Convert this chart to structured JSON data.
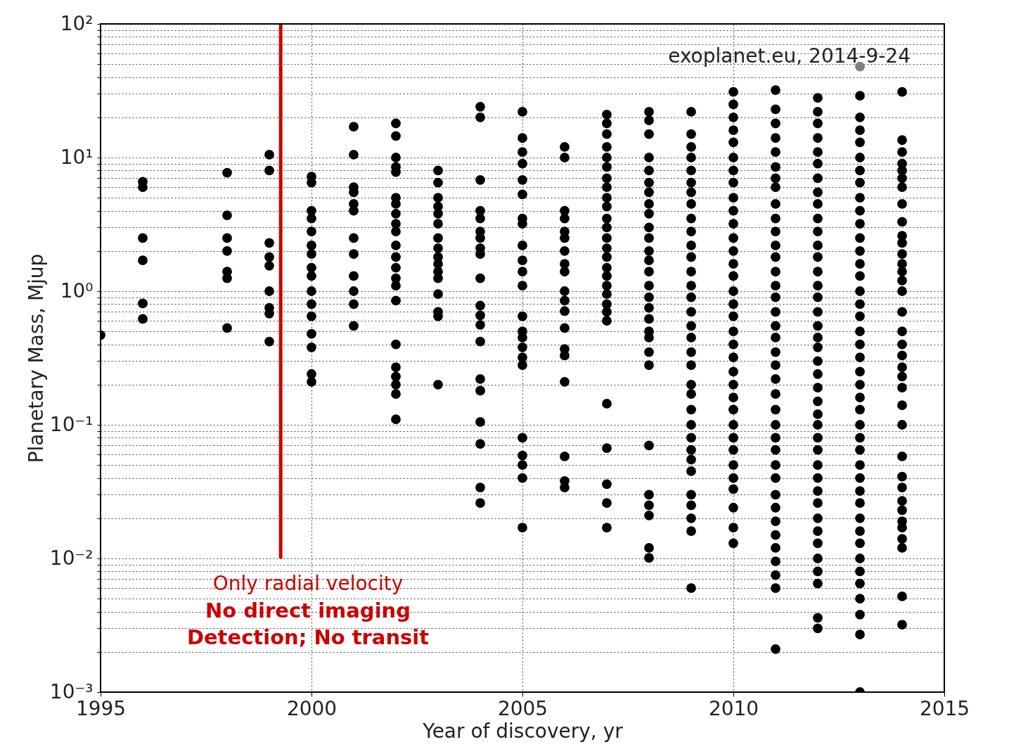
{
  "chart_data": {
    "type": "scatter",
    "xlabel": "Year of discovery, yr",
    "ylabel": "Planetary Mass, Mjup",
    "annotations": [
      "exoplanet.eu, 2014-9-24",
      "Only radial velocity",
      "No direct imaging",
      "Detection; No transit"
    ],
    "xlim": [
      1995,
      2015
    ],
    "xticks": [
      1995,
      2000,
      2005,
      2010,
      2015
    ],
    "ylim": [
      0.001,
      100
    ],
    "log": "y",
    "yticks": [
      {
        "value": 0.001,
        "label": "10⁻³"
      },
      {
        "value": 0.002,
        "label": null
      },
      {
        "value": 0.003,
        "label": null
      },
      {
        "value": 0.004,
        "label": null
      },
      {
        "value": 0.005,
        "label": null
      },
      {
        "value": 0.006,
        "label": null
      },
      {
        "value": 0.007,
        "label": null
      },
      {
        "value": 0.008,
        "label": null
      },
      {
        "value": 0.009,
        "label": null
      },
      {
        "value": 0.01,
        "label": "10⁻²"
      },
      {
        "value": 0.02,
        "label": null
      },
      {
        "value": 0.03,
        "label": null
      },
      {
        "value": 0.04,
        "label": null
      },
      {
        "value": 0.05,
        "label": null
      },
      {
        "value": 0.06,
        "label": null
      },
      {
        "value": 0.07,
        "label": null
      },
      {
        "value": 0.08,
        "label": null
      },
      {
        "value": 0.09,
        "label": null
      },
      {
        "value": 0.1,
        "label": "10⁻¹"
      },
      {
        "value": 0.2,
        "label": null
      },
      {
        "value": 0.3,
        "label": null
      },
      {
        "value": 0.4,
        "label": null
      },
      {
        "value": 0.5,
        "label": null
      },
      {
        "value": 0.6,
        "label": null
      },
      {
        "value": 0.7,
        "label": null
      },
      {
        "value": 0.8,
        "label": null
      },
      {
        "value": 0.9,
        "label": null
      },
      {
        "value": 1,
        "label": "10⁰"
      },
      {
        "value": 2,
        "label": null
      },
      {
        "value": 3,
        "label": null
      },
      {
        "value": 4,
        "label": null
      },
      {
        "value": 5,
        "label": null
      },
      {
        "value": 6,
        "label": null
      },
      {
        "value": 7,
        "label": null
      },
      {
        "value": 8,
        "label": null
      },
      {
        "value": 9,
        "label": null
      },
      {
        "value": 10,
        "label": "10¹"
      },
      {
        "value": 20,
        "label": null
      },
      {
        "value": 30,
        "label": null
      },
      {
        "value": 40,
        "label": null
      },
      {
        "value": 50,
        "label": null
      },
      {
        "value": 60,
        "label": null
      },
      {
        "value": 70,
        "label": null
      },
      {
        "value": 80,
        "label": null
      },
      {
        "value": 90,
        "label": null
      },
      {
        "value": 100,
        "label": "10²"
      }
    ],
    "grid": true,
    "marker": "circle",
    "series": [
      {
        "color": "#000000",
        "x": [
          1995
        ],
        "values": [
          0.47
        ]
      },
      {
        "color": "#000000",
        "x": [
          1996,
          1996,
          1996,
          1996,
          1996,
          1996
        ],
        "values": [
          6.6,
          6.0,
          2.5,
          1.7,
          0.81,
          0.62
        ]
      },
      {
        "color": "#000000",
        "x": [
          1998,
          1998,
          1998,
          1998,
          1998,
          1998,
          1998
        ],
        "values": [
          7.7,
          3.7,
          2.5,
          2.0,
          1.4,
          1.25,
          0.53
        ]
      },
      {
        "color": "#000000",
        "x": [
          1999,
          1999,
          1999,
          1999,
          1999,
          1999,
          1999,
          1999,
          1999
        ],
        "values": [
          10.5,
          8,
          2.3,
          1.8,
          1.55,
          1.0,
          0.75,
          0.68,
          0.42
        ]
      },
      {
        "color": "#000000",
        "x": [
          2000,
          2000,
          2000,
          2000,
          2000,
          2000,
          2000,
          2000,
          2000,
          2000,
          2000,
          2000,
          2000,
          2000,
          2000,
          2000
        ],
        "values": [
          7.2,
          6.5,
          4,
          3.5,
          2.8,
          2.2,
          1.9,
          1.5,
          1.3,
          1.0,
          0.8,
          0.65,
          0.48,
          0.38,
          0.24,
          0.21
        ]
      },
      {
        "color": "#000000",
        "x": [
          2001,
          2001,
          2001,
          2001,
          2001,
          2001,
          2001,
          2001,
          2001,
          2001,
          2001,
          2001
        ],
        "values": [
          17,
          10.5,
          6,
          5.5,
          4.5,
          4,
          2.5,
          1.9,
          1.3,
          1.0,
          0.8,
          0.55
        ]
      },
      {
        "color": "#000000",
        "x": [
          2002,
          2002,
          2002,
          2002,
          2002,
          2002,
          2002,
          2002,
          2002,
          2002,
          2002,
          2002,
          2002,
          2002,
          2002,
          2002,
          2002,
          2002,
          2002,
          2002,
          2002,
          2002
        ],
        "values": [
          18,
          14.5,
          10,
          8.5,
          7.8,
          5,
          4.5,
          3.8,
          3.2,
          2.8,
          2.2,
          1.8,
          1.5,
          1.25,
          1.1,
          0.85,
          0.4,
          0.27,
          0.23,
          0.2,
          0.17,
          0.11
        ]
      },
      {
        "color": "#000000",
        "x": [
          2003,
          2003,
          2003,
          2003,
          2003,
          2003,
          2003,
          2003,
          2003,
          2003,
          2003,
          2003,
          2003,
          2003,
          2003,
          2003
        ],
        "values": [
          8,
          6.5,
          5,
          4.3,
          3.8,
          3.2,
          2.5,
          2.1,
          1.8,
          1.6,
          1.4,
          1.25,
          0.95,
          0.7,
          0.65,
          0.2
        ]
      },
      {
        "color": "#000000",
        "x": [
          2004,
          2004,
          2004,
          2004,
          2004,
          2004,
          2004,
          2004,
          2004,
          2004,
          2004,
          2004,
          2004,
          2004,
          2004,
          2004,
          2004,
          2004,
          2004,
          2004
        ],
        "values": [
          24,
          20,
          6.8,
          4,
          3.5,
          2.8,
          2.5,
          2.1,
          1.9,
          1.25,
          0.78,
          0.66,
          0.56,
          0.42,
          0.22,
          0.18,
          0.105,
          0.072,
          0.034,
          0.026
        ]
      },
      {
        "color": "#000000",
        "x": [
          2005,
          2005,
          2005,
          2005,
          2005,
          2005,
          2005,
          2005,
          2005,
          2005,
          2005,
          2005,
          2005,
          2005,
          2005,
          2005,
          2005,
          2005,
          2005,
          2005,
          2005,
          2005,
          2005
        ],
        "values": [
          22,
          14,
          11,
          9,
          6.8,
          5.3,
          3.5,
          3.2,
          2.2,
          1.7,
          1.4,
          1.1,
          0.65,
          0.5,
          0.45,
          0.38,
          0.32,
          0.28,
          0.08,
          0.059,
          0.05,
          0.04,
          0.017
        ]
      },
      {
        "color": "#000000",
        "x": [
          2006,
          2006,
          2006,
          2006,
          2006,
          2006,
          2006,
          2006,
          2006,
          2006,
          2006,
          2006,
          2006,
          2006,
          2006,
          2006,
          2006,
          2006,
          2006
        ],
        "values": [
          12,
          10,
          4,
          3.5,
          2.8,
          2.5,
          2,
          1.6,
          1.4,
          1,
          0.85,
          0.71,
          0.53,
          0.37,
          0.33,
          0.21,
          0.058,
          0.038,
          0.034
        ]
      },
      {
        "color": "#000000",
        "x": [
          2007,
          2007,
          2007,
          2007,
          2007,
          2007,
          2007,
          2007,
          2007,
          2007,
          2007,
          2007,
          2007,
          2007,
          2007,
          2007,
          2007,
          2007,
          2007,
          2007,
          2007,
          2007,
          2007,
          2007,
          2007,
          2007,
          2007
        ],
        "values": [
          21,
          18,
          15,
          12,
          10,
          8.5,
          7,
          6,
          5,
          4.3,
          3.5,
          3,
          2.5,
          2.1,
          1.8,
          1.5,
          1.3,
          1.1,
          0.95,
          0.8,
          0.7,
          0.6,
          0.144,
          0.067,
          0.036,
          0.026,
          0.017
        ]
      },
      {
        "color": "#000000",
        "x": [
          2008,
          2008,
          2008,
          2008,
          2008,
          2008,
          2008,
          2008,
          2008,
          2008,
          2008,
          2008,
          2008,
          2008,
          2008,
          2008,
          2008,
          2008,
          2008,
          2008,
          2008,
          2008,
          2008,
          2008,
          2008,
          2008,
          2008,
          2008
        ],
        "values": [
          22,
          19,
          15,
          10,
          8,
          6.5,
          5.5,
          4.5,
          3.8,
          3,
          2.5,
          2,
          1.7,
          1.4,
          1.1,
          0.9,
          0.75,
          0.62,
          0.5,
          0.45,
          0.35,
          0.28,
          0.07,
          0.03,
          0.025,
          0.021,
          0.012,
          0.0101
        ]
      },
      {
        "color": "#000000",
        "x": [
          2009,
          2009,
          2009,
          2009,
          2009,
          2009,
          2009,
          2009,
          2009,
          2009,
          2009,
          2009,
          2009,
          2009,
          2009,
          2009,
          2009,
          2009,
          2009,
          2009,
          2009,
          2009,
          2009,
          2009,
          2009,
          2009,
          2009,
          2009,
          2009,
          2009,
          2009,
          2009,
          2009
        ],
        "values": [
          22,
          15,
          12,
          10,
          8,
          6.5,
          5.5,
          4.5,
          3.5,
          2.8,
          2.2,
          1.8,
          1.4,
          1.1,
          0.9,
          0.7,
          0.55,
          0.45,
          0.35,
          0.28,
          0.2,
          0.17,
          0.13,
          0.1,
          0.08,
          0.065,
          0.055,
          0.045,
          0.03,
          0.025,
          0.02,
          0.016,
          0.006
        ]
      },
      {
        "color": "#000000",
        "x": [
          2010,
          2010,
          2010,
          2010,
          2010,
          2010,
          2010,
          2010,
          2010,
          2010,
          2010,
          2010,
          2010,
          2010,
          2010,
          2010,
          2010,
          2010,
          2010,
          2010,
          2010,
          2010,
          2010,
          2010,
          2010,
          2010,
          2010,
          2010,
          2010,
          2010,
          2010,
          2010,
          2010,
          2010
        ],
        "values": [
          31,
          25,
          20,
          16,
          13,
          10,
          8,
          6.5,
          5,
          4,
          3.2,
          2.5,
          2,
          1.6,
          1.3,
          1,
          0.8,
          0.65,
          0.5,
          0.4,
          0.32,
          0.25,
          0.2,
          0.16,
          0.13,
          0.1,
          0.08,
          0.065,
          0.05,
          0.04,
          0.033,
          0.024,
          0.017,
          0.013
        ]
      },
      {
        "color": "#000000",
        "x": [
          2011,
          2011,
          2011,
          2011,
          2011,
          2011,
          2011,
          2011,
          2011,
          2011,
          2011,
          2011,
          2011,
          2011,
          2011,
          2011,
          2011,
          2011,
          2011,
          2011,
          2011,
          2011,
          2011,
          2011,
          2011,
          2011,
          2011,
          2011,
          2011,
          2011,
          2011,
          2011,
          2011,
          2011,
          2011,
          2011,
          2011,
          2011
        ],
        "values": [
          32,
          23,
          18,
          14,
          11,
          8.5,
          7,
          6,
          4.5,
          3.5,
          2.8,
          2.2,
          1.8,
          1.4,
          1.1,
          0.9,
          0.7,
          0.55,
          0.45,
          0.35,
          0.28,
          0.22,
          0.17,
          0.13,
          0.1,
          0.08,
          0.065,
          0.05,
          0.04,
          0.03,
          0.024,
          0.019,
          0.015,
          0.012,
          0.0095,
          0.0075,
          0.006,
          0.0021
        ]
      },
      {
        "color": "#000000",
        "x": [
          2012,
          2012,
          2012,
          2012,
          2012,
          2012,
          2012,
          2012,
          2012,
          2012,
          2012,
          2012,
          2012,
          2012,
          2012,
          2012,
          2012,
          2012,
          2012,
          2012,
          2012,
          2012,
          2012,
          2012,
          2012,
          2012,
          2012,
          2012,
          2012,
          2012,
          2012,
          2012,
          2012,
          2012,
          2012,
          2012,
          2012,
          2012,
          2012,
          2012
        ],
        "values": [
          28,
          22,
          18,
          14,
          11,
          9,
          7,
          5.5,
          4.5,
          3.5,
          2.8,
          2.2,
          1.8,
          1.4,
          1.1,
          0.9,
          0.7,
          0.55,
          0.45,
          0.38,
          0.3,
          0.24,
          0.19,
          0.15,
          0.12,
          0.1,
          0.08,
          0.065,
          0.05,
          0.04,
          0.032,
          0.026,
          0.02,
          0.016,
          0.013,
          0.01,
          0.008,
          0.0065,
          0.0036,
          0.003
        ]
      },
      {
        "color": "#000000",
        "x": [
          2013,
          2013,
          2013,
          2013,
          2013,
          2013,
          2013,
          2013,
          2013,
          2013,
          2013,
          2013,
          2013,
          2013,
          2013,
          2013,
          2013,
          2013,
          2013,
          2013,
          2013,
          2013,
          2013,
          2013,
          2013,
          2013,
          2013,
          2013,
          2013,
          2013,
          2013,
          2013,
          2013,
          2013,
          2013,
          2013,
          2013,
          2013,
          2013,
          2013,
          2013
        ],
        "values": [
          29,
          20,
          16,
          13,
          10,
          8,
          6.5,
          5,
          4,
          3.2,
          2.5,
          2,
          1.6,
          1.3,
          1,
          0.8,
          0.65,
          0.5,
          0.4,
          0.32,
          0.25,
          0.2,
          0.16,
          0.13,
          0.1,
          0.08,
          0.065,
          0.05,
          0.04,
          0.032,
          0.026,
          0.02,
          0.016,
          0.013,
          0.01,
          0.008,
          0.0065,
          0.005,
          0.0038,
          0.0027,
          0.001
        ]
      },
      {
        "color": "#000000",
        "x": [
          2014,
          2014,
          2014,
          2014,
          2014,
          2014,
          2014,
          2014,
          2014,
          2014,
          2014,
          2014,
          2014,
          2014,
          2014,
          2014,
          2014,
          2014,
          2014,
          2014,
          2014,
          2014,
          2014,
          2014,
          2014,
          2014,
          2014,
          2014,
          2014,
          2014,
          2014,
          2014,
          2014,
          2014,
          2014,
          2014
        ],
        "values": [
          31,
          13.5,
          11,
          9,
          8,
          7,
          6,
          4.5,
          3.3,
          2.6,
          2.3,
          1.9,
          1.6,
          1.4,
          1.2,
          1,
          0.7,
          0.5,
          0.4,
          0.33,
          0.27,
          0.23,
          0.19,
          0.14,
          0.1,
          0.058,
          0.041,
          0.034,
          0.027,
          0.023,
          0.019,
          0.017,
          0.014,
          0.012,
          0.0052,
          0.0032
        ]
      },
      {
        "color": "#808080",
        "x": [
          2013
        ],
        "values": [
          48
        ]
      },
      {
        "type": "line",
        "color": "#cc0000",
        "line_style": "solid",
        "marker": "none",
        "x": [
          1999.27,
          1999.27
        ],
        "values": [
          100,
          0.01
        ]
      }
    ]
  }
}
